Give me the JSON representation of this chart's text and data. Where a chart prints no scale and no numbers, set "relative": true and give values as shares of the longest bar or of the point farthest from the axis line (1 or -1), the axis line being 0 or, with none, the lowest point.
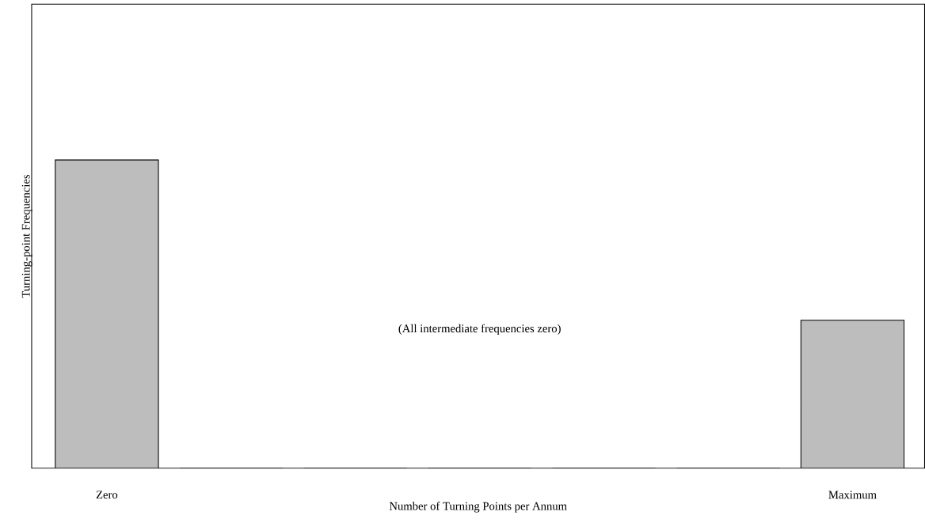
{
  "chart_data": {
    "type": "bar",
    "relative": true,
    "xlabel": "Number of Turning Points per Annum",
    "ylabel": "Turning-point Frequencies",
    "categories": [
      "Zero",
      null,
      null,
      null,
      null,
      null,
      "Maximum"
    ],
    "values": [
      1,
      0,
      0,
      0,
      0,
      0,
      0.48
    ],
    "color": "#bdbdbd",
    "annotations": [
      "(All intermediate frequencies zero)"
    ]
  }
}
